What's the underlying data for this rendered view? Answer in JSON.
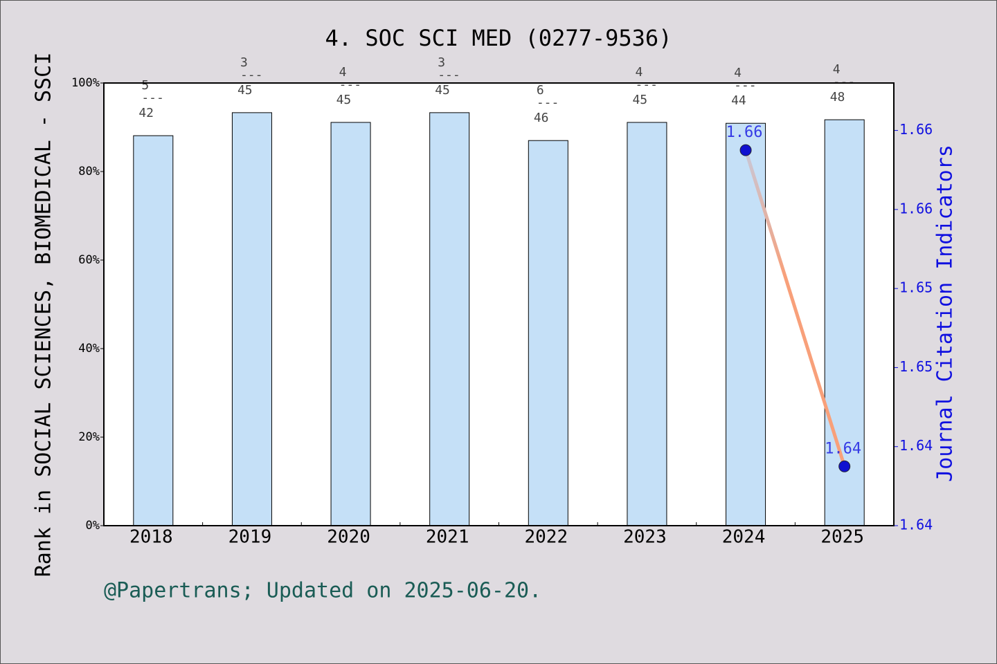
{
  "chart_data": {
    "type": "bar",
    "title": "4. SOC SCI MED (0277-9536)",
    "ylabel": "Rank in SOCIAL SCIENCES, BIOMEDICAL - SSCI",
    "y2label": "Journal Citation Indicators",
    "footer": "@Papertrans; Updated on 2025-06-20.",
    "categories": [
      "2018",
      "2019",
      "2020",
      "2021",
      "2022",
      "2023",
      "2024",
      "2025"
    ],
    "values": [
      88.1,
      93.3,
      91.1,
      93.3,
      87.0,
      91.1,
      90.9,
      91.7
    ],
    "color": "#c5e0f7",
    "rank_labels": [
      {
        "rank": 5,
        "total": 42
      },
      {
        "rank": 3,
        "total": 45
      },
      {
        "rank": 4,
        "total": 45
      },
      {
        "rank": 3,
        "total": 45
      },
      {
        "rank": 6,
        "total": 46
      },
      {
        "rank": 4,
        "total": 45
      },
      {
        "rank": 4,
        "total": 44
      },
      {
        "rank": 4,
        "total": 48
      }
    ],
    "separator": "---",
    "ylim": [
      0,
      100
    ],
    "yticks": [
      {
        "value": 0,
        "label": "0%"
      },
      {
        "value": 20,
        "label": "20%"
      },
      {
        "value": 40,
        "label": "40%"
      },
      {
        "value": 60,
        "label": "60%"
      },
      {
        "value": 80,
        "label": "80%"
      },
      {
        "value": 100,
        "label": "100%"
      }
    ],
    "y2lim": [
      1.64,
      1.6624
    ],
    "y2ticks": [
      1.64,
      {
        "value": 1.644,
        "label": "1.64"
      },
      {
        "value": 1.648,
        "label": "1.65"
      },
      {
        "value": 1.652,
        "label": "1.65"
      },
      {
        "value": 1.656,
        "label": "1.66"
      },
      {
        "value": 1.66,
        "label": "1.66"
      }
    ],
    "series": [
      {
        "name": "Journal Citation Indicators",
        "axis": "y2",
        "type": "line",
        "color": "#1010d0",
        "values": [
          null,
          null,
          null,
          null,
          null,
          null,
          1.659,
          1.643
        ],
        "value_labels": [
          null,
          null,
          null,
          null,
          null,
          null,
          "1.66",
          "1.64"
        ]
      }
    ]
  }
}
